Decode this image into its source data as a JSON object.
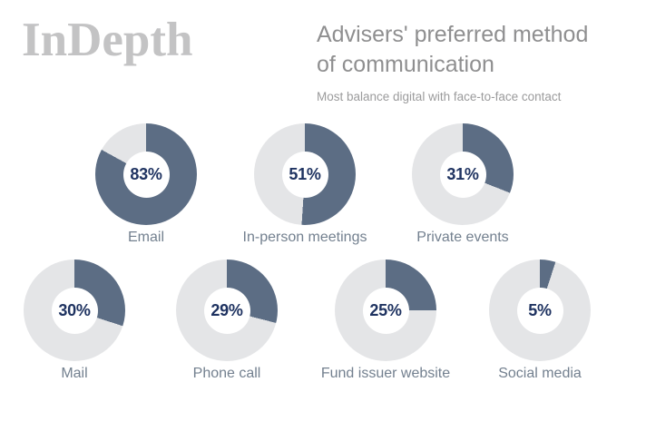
{
  "logo": "InDepth",
  "header": {
    "title_line1": "Advisers' preferred method",
    "title_line2": "of communication",
    "subtitle": "Most balance digital with face-to-face contact"
  },
  "colors": {
    "slice_filled": "#5c6d84",
    "slice_remainder": "#e4e5e7",
    "percent_text": "#1f3361",
    "label_text": "#73808f",
    "title_text": "#8f8f90",
    "logo_text": "#c3c3c4"
  },
  "chart_data": {
    "type": "pie",
    "variant": "donut-small-multiples",
    "title": "Advisers' preferred method of communication",
    "subtitle": "Most balance digital with face-to-face contact",
    "unit": "%",
    "value_range": [
      0,
      100
    ],
    "fill_direction": "clockwise-from-top",
    "legend": "none",
    "items": [
      {
        "label": "Email",
        "value": 83,
        "display": "83%",
        "row": 1
      },
      {
        "label": "In-person meetings",
        "value": 51,
        "display": "51%",
        "row": 1
      },
      {
        "label": "Private events",
        "value": 31,
        "display": "31%",
        "row": 1
      },
      {
        "label": "Mail",
        "value": 30,
        "display": "30%",
        "row": 2
      },
      {
        "label": "Phone call",
        "value": 29,
        "display": "29%",
        "row": 2
      },
      {
        "label": "Fund issuer website",
        "value": 25,
        "display": "25%",
        "row": 2
      },
      {
        "label": "Social media",
        "value": 5,
        "display": "5%",
        "row": 2
      }
    ]
  }
}
